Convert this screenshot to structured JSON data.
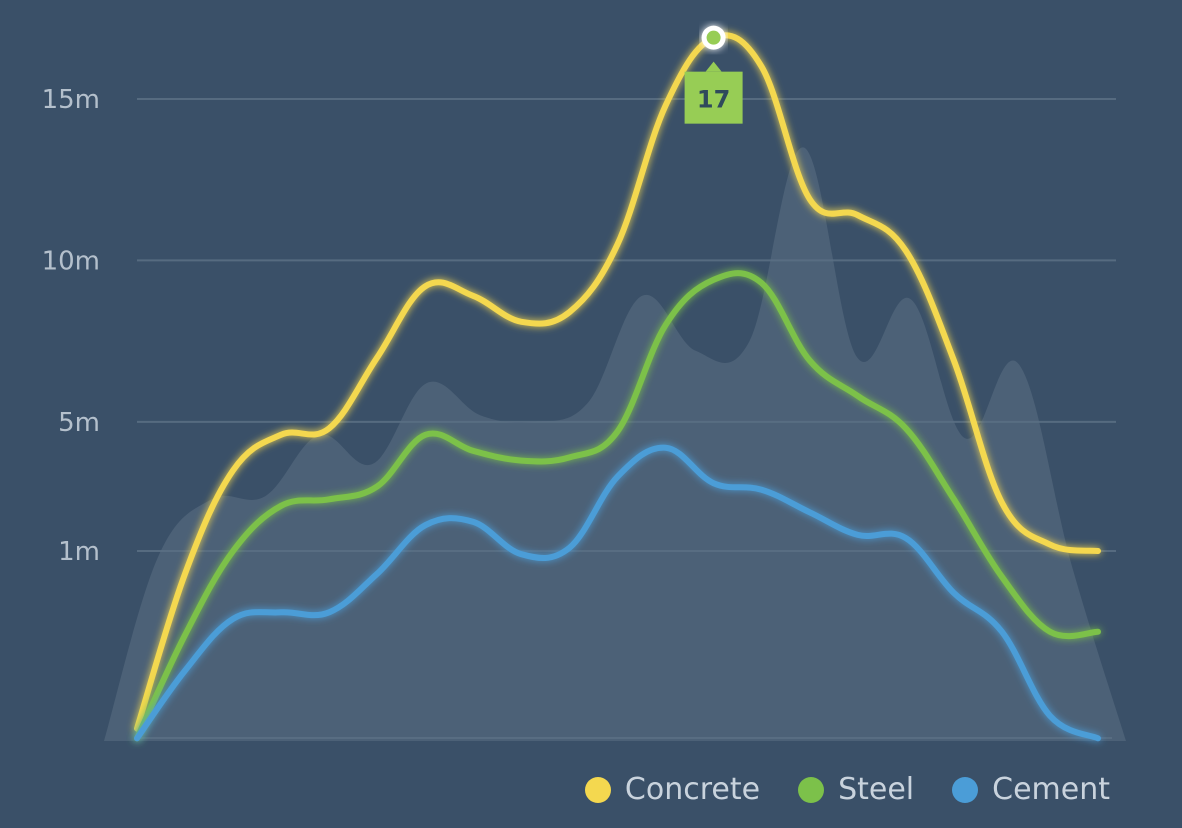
{
  "chart_data": {
    "type": "line",
    "x": [
      0,
      1,
      2,
      3,
      4,
      5,
      6,
      7,
      8,
      9,
      10,
      11,
      12,
      13,
      14,
      15,
      16,
      17,
      18,
      19,
      20
    ],
    "yticks": [
      {
        "value": 1,
        "label": "1m"
      },
      {
        "value": 5,
        "label": "5m"
      },
      {
        "value": 10,
        "label": "10m"
      },
      {
        "value": 15,
        "label": "15m"
      }
    ],
    "ylim": [
      -5.2,
      17
    ],
    "series": [
      {
        "name": "Concrete",
        "color": "#f4d84f",
        "values": [
          -4.5,
          0.3,
          3.5,
          4.6,
          4.8,
          7.0,
          9.2,
          8.9,
          8.1,
          8.4,
          10.5,
          14.8,
          16.9,
          16.0,
          11.9,
          11.4,
          10.3,
          6.9,
          2.5,
          1.2,
          1.0
        ]
      },
      {
        "name": "Steel",
        "color": "#7cc14a",
        "values": [
          -4.8,
          -1.6,
          1.0,
          2.4,
          2.6,
          3.0,
          4.6,
          4.1,
          3.8,
          3.9,
          4.7,
          8.0,
          9.4,
          9.3,
          6.9,
          5.8,
          4.8,
          2.6,
          0.2,
          -1.5,
          -1.5
        ]
      },
      {
        "name": "Cement",
        "color": "#4b9dd7",
        "values": [
          -4.8,
          -2.7,
          -1.1,
          -0.9,
          -0.9,
          0.3,
          1.8,
          1.9,
          0.9,
          1.1,
          3.3,
          4.2,
          3.1,
          2.9,
          2.2,
          1.5,
          1.4,
          -0.3,
          -1.5,
          -4.1,
          -4.8
        ]
      }
    ],
    "background_area": {
      "color": "#5b6f84",
      "values": [
        -6,
        0.8,
        2.6,
        2.7,
        4.6,
        3.7,
        6.2,
        5.2,
        5.0,
        5.6,
        8.9,
        7.2,
        7.5,
        13.5,
        7.0,
        8.8,
        4.5,
        6.8,
        0.5,
        -6
      ]
    },
    "tooltip": {
      "series": "Concrete",
      "index": 12,
      "label": "17",
      "color": "#97cd55"
    },
    "legend_position": "bottom-right",
    "grid": true
  }
}
